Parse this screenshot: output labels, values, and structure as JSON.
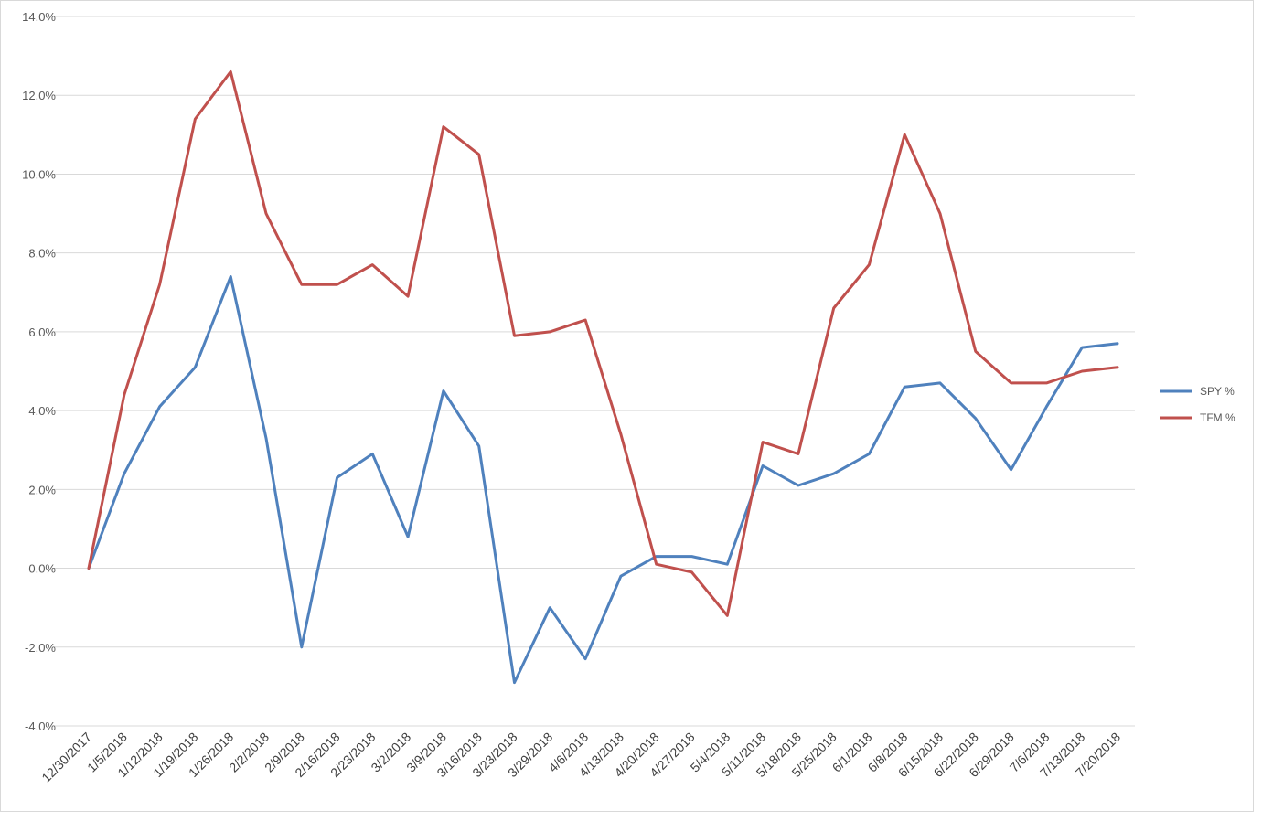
{
  "chart_data": {
    "type": "line",
    "title": "",
    "xlabel": "",
    "ylabel": "",
    "ylim": [
      -4,
      14
    ],
    "ytick_step": 2,
    "y_format": "percent_one_decimal",
    "y_tick_labels": [
      "-4.0%",
      "-2.0%",
      "0.0%",
      "2.0%",
      "4.0%",
      "6.0%",
      "8.0%",
      "10.0%",
      "12.0%",
      "14.0%"
    ],
    "grid": true,
    "legend_position": "right",
    "categories": [
      "12/30/2017",
      "1/5/2018",
      "1/12/2018",
      "1/19/2018",
      "1/26/2018",
      "2/2/2018",
      "2/9/2018",
      "2/16/2018",
      "2/23/2018",
      "3/2/2018",
      "3/9/2018",
      "3/16/2018",
      "3/23/2018",
      "3/29/2018",
      "4/6/2018",
      "4/13/2018",
      "4/20/2018",
      "4/27/2018",
      "5/4/2018",
      "5/11/2018",
      "5/18/2018",
      "5/25/2018",
      "6/1/2018",
      "6/8/2018",
      "6/15/2018",
      "6/22/2018",
      "6/29/2018",
      "7/6/2018",
      "7/13/2018",
      "7/20/2018"
    ],
    "series": [
      {
        "name": "SPY %",
        "color": "#4f81bd",
        "values": [
          0.0,
          2.4,
          4.1,
          5.1,
          7.4,
          3.3,
          -2.0,
          2.3,
          2.9,
          0.8,
          4.5,
          3.1,
          -2.9,
          -1.0,
          -2.3,
          -0.2,
          0.3,
          0.3,
          0.1,
          2.6,
          2.1,
          2.4,
          2.9,
          4.6,
          4.7,
          3.8,
          2.5,
          4.1,
          5.6,
          5.7
        ]
      },
      {
        "name": "TFM %",
        "color": "#c0504d",
        "values": [
          0.0,
          4.4,
          7.2,
          11.4,
          12.6,
          9.0,
          7.2,
          7.2,
          7.7,
          6.9,
          11.2,
          10.5,
          5.9,
          6.0,
          6.3,
          3.4,
          0.1,
          -0.1,
          -1.2,
          3.2,
          2.9,
          6.6,
          7.7,
          11.0,
          9.0,
          5.5,
          4.7,
          4.7,
          5.0,
          5.1
        ]
      }
    ]
  },
  "colors": {
    "gridline": "#d9d9d9",
    "frame": "#d9d9d9",
    "tick_text": "#595959"
  }
}
